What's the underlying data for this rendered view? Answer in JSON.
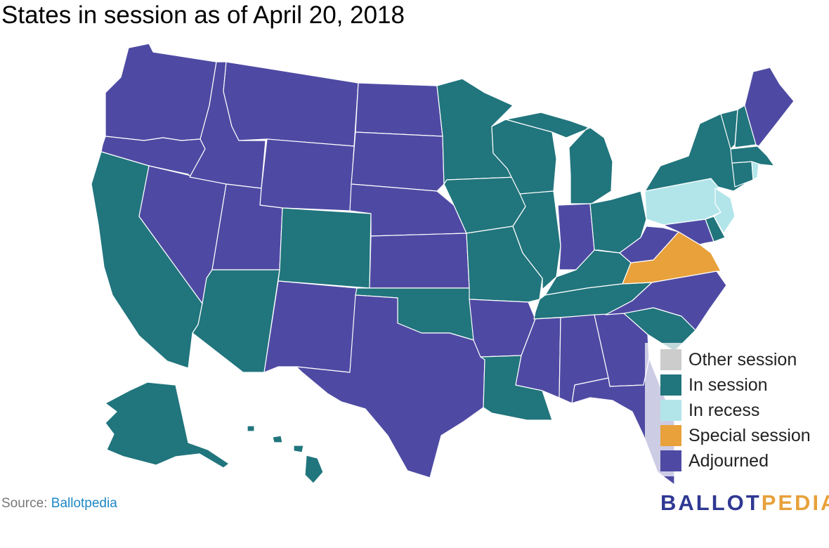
{
  "title": "States in session as of April 20, 2018",
  "colors": {
    "other": "#cccccc",
    "in_session": "#21757d",
    "recess": "#b2e5ea",
    "special": "#e8a13b",
    "adjourned": "#4e4aa3",
    "source_link": "#1d87c5",
    "brand_ballot": "#2f3892",
    "brand_pedia": "#e8a13b"
  },
  "legend": {
    "items": [
      {
        "key": "other",
        "label": "Other session",
        "color": "#cccccc"
      },
      {
        "key": "in_session",
        "label": "In session",
        "color": "#21757d"
      },
      {
        "key": "recess",
        "label": "In recess",
        "color": "#b2e5ea"
      },
      {
        "key": "special",
        "label": "Special session",
        "color": "#e8a13b"
      },
      {
        "key": "adjourned",
        "label": "Adjourned",
        "color": "#4e4aa3"
      }
    ]
  },
  "states": {
    "WA": "adjourned",
    "OR": "adjourned",
    "CA": "in_session",
    "NV": "adjourned",
    "ID": "adjourned",
    "MT": "adjourned",
    "WY": "adjourned",
    "UT": "adjourned",
    "AZ": "in_session",
    "CO": "in_session",
    "NM": "adjourned",
    "ND": "adjourned",
    "SD": "adjourned",
    "NE": "adjourned",
    "KS": "adjourned",
    "OK": "in_session",
    "TX": "adjourned",
    "MN": "in_session",
    "IA": "in_session",
    "MO": "in_session",
    "AR": "adjourned",
    "LA": "in_session",
    "WI": "in_session",
    "IL": "in_session",
    "MI": "in_session",
    "IN": "adjourned",
    "OH": "in_session",
    "KY": "in_session",
    "TN": "in_session",
    "MS": "adjourned",
    "AL": "adjourned",
    "GA": "adjourned",
    "FL": "adjourned",
    "SC": "in_session",
    "NC": "adjourned",
    "VA": "special",
    "WV": "adjourned",
    "MD": "adjourned",
    "DE": "in_session",
    "PA": "recess",
    "NJ": "recess",
    "NY": "in_session",
    "CT": "in_session",
    "RI": "recess",
    "MA": "in_session",
    "VT": "in_session",
    "NH": "in_session",
    "ME": "adjourned",
    "AK": "in_session",
    "HI": "in_session"
  },
  "source": {
    "prefix": "Source: ",
    "link": "Ballotpedia"
  },
  "brand": {
    "part1": "BALLOT",
    "part2": "PEDIA"
  }
}
